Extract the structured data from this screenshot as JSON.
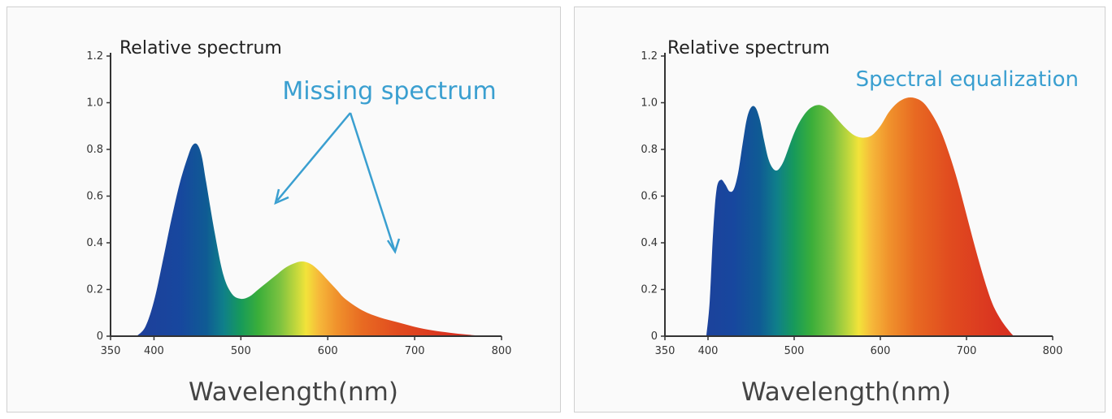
{
  "chart_data": [
    {
      "type": "area",
      "ylabel": "Relative spectrum",
      "xlabel": "Wavelength(nm)",
      "annotation": "Missing spectrum",
      "xlim": [
        350,
        800
      ],
      "ylim": [
        0,
        1.2
      ],
      "x_ticks": [
        "350",
        "400",
        "500",
        "600",
        "700",
        "800"
      ],
      "y_ticks": [
        "0",
        "0.2",
        "0.4",
        "0.6",
        "0.8",
        "1.0",
        "1.2"
      ],
      "series": [
        {
          "x": [
            380,
            390,
            400,
            410,
            420,
            430,
            440,
            445,
            450,
            455,
            460,
            470,
            480,
            490,
            500,
            510,
            520,
            530,
            540,
            550,
            560,
            570,
            580,
            590,
            600,
            610,
            620,
            640,
            660,
            680,
            700,
            720,
            740,
            760,
            780
          ],
          "values": [
            0,
            0.04,
            0.15,
            0.32,
            0.5,
            0.66,
            0.78,
            0.82,
            0.82,
            0.77,
            0.66,
            0.44,
            0.26,
            0.18,
            0.16,
            0.17,
            0.2,
            0.23,
            0.26,
            0.29,
            0.31,
            0.32,
            0.31,
            0.28,
            0.24,
            0.2,
            0.16,
            0.11,
            0.08,
            0.06,
            0.04,
            0.025,
            0.015,
            0.007,
            0
          ]
        }
      ]
    },
    {
      "type": "area",
      "ylabel": "Relative spectrum",
      "xlabel": "Wavelength(nm)",
      "annotation": "Spectral equalization",
      "xlim": [
        350,
        800
      ],
      "ylim": [
        0,
        1.2
      ],
      "x_ticks": [
        "350",
        "400",
        "500",
        "600",
        "700",
        "800"
      ],
      "y_ticks": [
        "0",
        "0.2",
        "0.4",
        "0.6",
        "0.8",
        "1.0",
        "1.2"
      ],
      "series": [
        {
          "x": [
            398,
            402,
            406,
            410,
            415,
            420,
            425,
            430,
            435,
            440,
            445,
            450,
            455,
            460,
            465,
            470,
            475,
            480,
            485,
            490,
            500,
            510,
            520,
            530,
            540,
            550,
            560,
            570,
            580,
            590,
            600,
            610,
            620,
            630,
            640,
            650,
            660,
            670,
            680,
            690,
            700,
            710,
            720,
            730,
            740,
            750,
            755
          ],
          "values": [
            0,
            0.15,
            0.45,
            0.63,
            0.67,
            0.65,
            0.62,
            0.63,
            0.7,
            0.82,
            0.93,
            0.98,
            0.98,
            0.93,
            0.84,
            0.76,
            0.72,
            0.71,
            0.73,
            0.77,
            0.87,
            0.94,
            0.98,
            0.99,
            0.97,
            0.93,
            0.89,
            0.86,
            0.85,
            0.86,
            0.9,
            0.96,
            1.0,
            1.02,
            1.02,
            1.0,
            0.95,
            0.88,
            0.78,
            0.66,
            0.52,
            0.38,
            0.25,
            0.14,
            0.07,
            0.02,
            0
          ]
        }
      ]
    }
  ]
}
